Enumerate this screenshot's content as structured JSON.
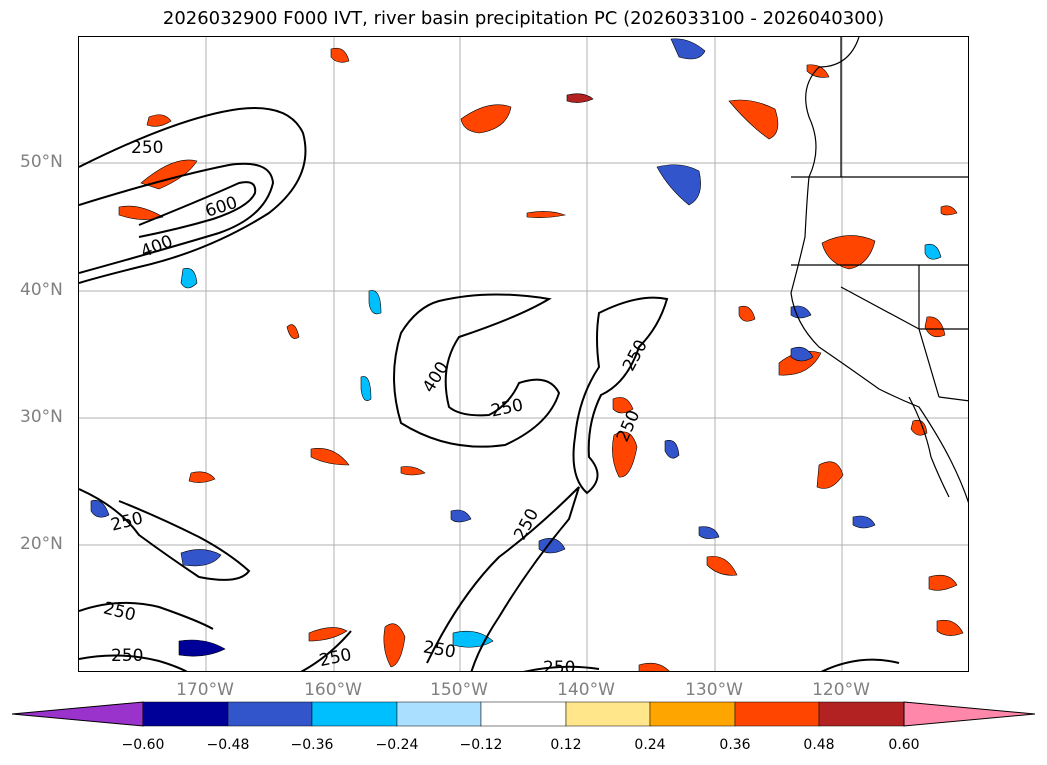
{
  "title": "2026032900 F000 IVT, river basin precipitation PC (2026033100 - 2026040300)",
  "map": {
    "latitude_labels": [
      "50°N",
      "40°N",
      "30°N",
      "20°N"
    ],
    "longitude_labels": [
      "170°W",
      "160°W",
      "150°W",
      "140°W",
      "130°W",
      "120°W"
    ],
    "contour_labels": [
      "250",
      "600",
      "400",
      "400",
      "250",
      "250",
      "250",
      "250",
      "250",
      "250",
      "250",
      "250",
      "250",
      "250"
    ],
    "colors": {
      "contour": "#000000",
      "gridline": "#b0b0b0",
      "coastline": "#000000"
    }
  },
  "colorbar": {
    "tick_labels": [
      "−0.60",
      "−0.48",
      "−0.36",
      "−0.24",
      "−0.12",
      "0.12",
      "0.24",
      "0.36",
      "0.48",
      "0.60"
    ],
    "bins": [
      "#9933cc",
      "#000099",
      "#3355cc",
      "#00bfff",
      "#aadfff",
      "#ffffff",
      "#ffe68a",
      "#ffa500",
      "#ff4500",
      "#b22222",
      "#ff88aa"
    ]
  }
}
